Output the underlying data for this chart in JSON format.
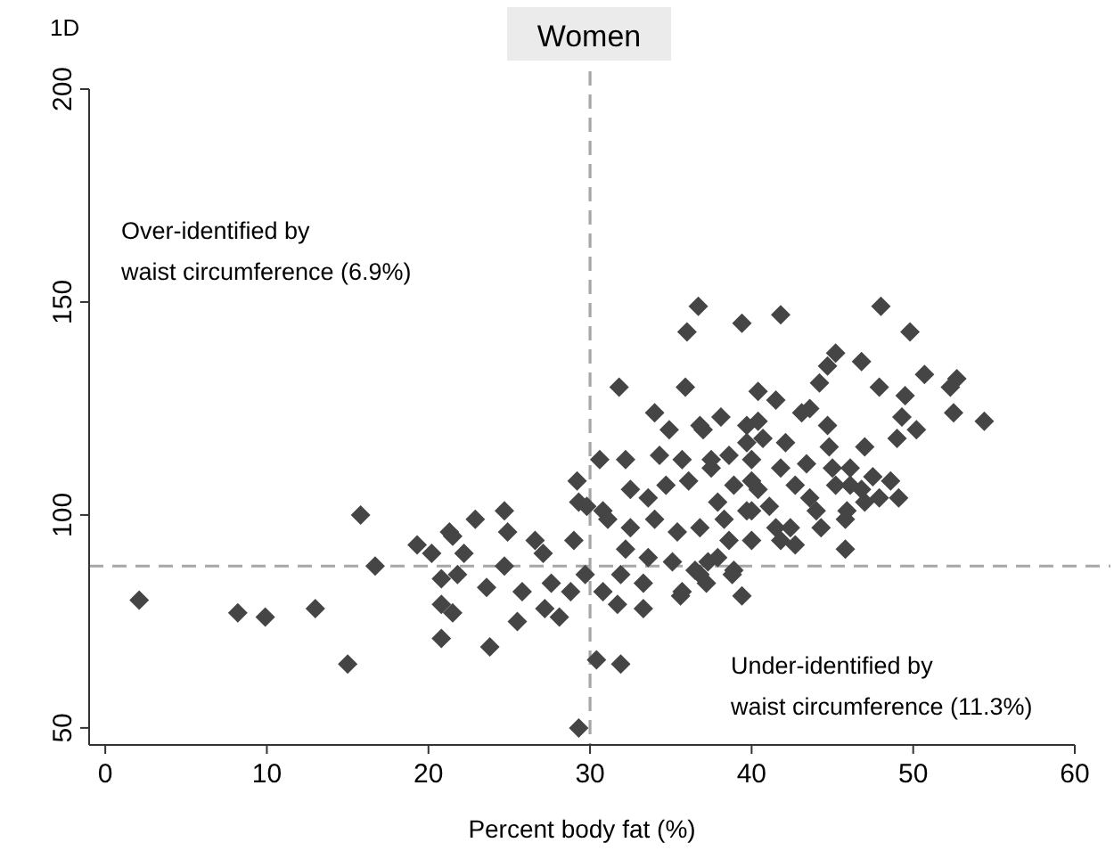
{
  "chart_data": {
    "type": "scatter",
    "title": "Women",
    "xlabel": "Percent body fat (%)",
    "annotations": [
      "1D",
      "Over-identified by\nwaist circumference (6.9%)",
      "Under-identified by\nwaist circumference (11.3%)"
    ],
    "xlim": [
      -1,
      60
    ],
    "xticks": [
      0,
      10,
      20,
      30,
      40,
      50,
      60
    ],
    "ylim": [
      46,
      200
    ],
    "yticks": [
      50,
      100,
      150,
      200
    ],
    "grid": false,
    "marker": "diamond",
    "ref_lines": [
      {
        "axis": "x",
        "value": 30,
        "color": "#a6a6a6",
        "line_style": "dashed"
      },
      {
        "axis": "y",
        "value": 88,
        "color": "#a6a6a6",
        "line_style": "dashed"
      }
    ],
    "series": [
      {
        "color": "#454545",
        "x": [
          2.1,
          8.2,
          9.9,
          13.0,
          15.0,
          15.8,
          16.7,
          19.3,
          20.2,
          20.8,
          20.8,
          20.8,
          21.3,
          36.7,
          36.0,
          39.4,
          31.8,
          35.9,
          34.0,
          34.9,
          36.8,
          29.2,
          30.6,
          32.2,
          29.3,
          24.7,
          22.9,
          21.5,
          24.9,
          26.6,
          22.2,
          24.7,
          27.1,
          29.0,
          30.8,
          21.8,
          23.6,
          25.8,
          27.6,
          29.7,
          21.5,
          25.5,
          27.2,
          28.1,
          28.8,
          30.8,
          31.7,
          33.3,
          23.8,
          30.4,
          31.9,
          29.3,
          35.6,
          39.4,
          32.5,
          33.6,
          34.7,
          36.1,
          37.5,
          38.6,
          39.7,
          34.3,
          35.7,
          31.1,
          32.5,
          34.0,
          35.4,
          36.8,
          38.3,
          32.2,
          33.6,
          35.1,
          36.5,
          37.9,
          31.9,
          33.3,
          35.7,
          37.2,
          38.9,
          40.0,
          40.0,
          40.0,
          40.4,
          41.8,
          48.0,
          49.8,
          45.2,
          44.7,
          46.8,
          44.2,
          50.7,
          47.9,
          52.3,
          49.5,
          52.7,
          49.3,
          52.5,
          54.4,
          49.0,
          50.2,
          40.4,
          41.5,
          43.1,
          44.7,
          43.6,
          38.1,
          37.0,
          39.7,
          40.7,
          42.1,
          44.8,
          47.0,
          37.5,
          40.0,
          41.8,
          43.4,
          45.0,
          46.1,
          47.5,
          48.6,
          49.1,
          47.9,
          46.8,
          46.1,
          45.2,
          42.7,
          43.6,
          40.4,
          38.9,
          37.9,
          39.7,
          41.1,
          44.0,
          45.9,
          47.0,
          41.5,
          42.4,
          44.3,
          45.8,
          38.6,
          41.8,
          42.7,
          45.8,
          37.3,
          38.8,
          36.8,
          29.8
        ],
        "values": [
          80,
          77,
          76,
          78,
          65,
          100,
          88,
          93,
          91,
          85,
          79,
          71,
          96,
          149,
          143,
          145,
          130,
          130,
          124,
          120,
          121,
          108,
          113,
          113,
          103,
          101,
          99,
          95,
          96,
          94,
          91,
          88,
          91,
          94,
          101,
          86,
          83,
          82,
          84,
          86,
          77,
          75,
          78,
          76,
          82,
          82,
          79,
          78,
          69,
          66,
          65,
          50,
          81,
          81,
          106,
          104,
          107,
          108,
          111,
          114,
          117,
          114,
          113,
          99,
          97,
          99,
          96,
          97,
          99,
          92,
          90,
          89,
          87,
          90,
          86,
          84,
          82,
          84,
          87,
          94,
          101,
          108,
          122,
          147,
          149,
          143,
          138,
          135,
          136,
          131,
          133,
          130,
          130,
          128,
          132,
          123,
          124,
          122,
          118,
          120,
          129,
          127,
          124,
          121,
          125,
          123,
          120,
          121,
          118,
          117,
          116,
          116,
          113,
          113,
          111,
          112,
          111,
          111,
          109,
          108,
          104,
          104,
          106,
          107,
          107,
          107,
          104,
          106,
          107,
          103,
          101,
          102,
          101,
          101,
          103,
          97,
          97,
          97,
          99,
          94,
          94,
          93,
          92,
          89,
          86,
          86,
          102
        ]
      }
    ]
  }
}
